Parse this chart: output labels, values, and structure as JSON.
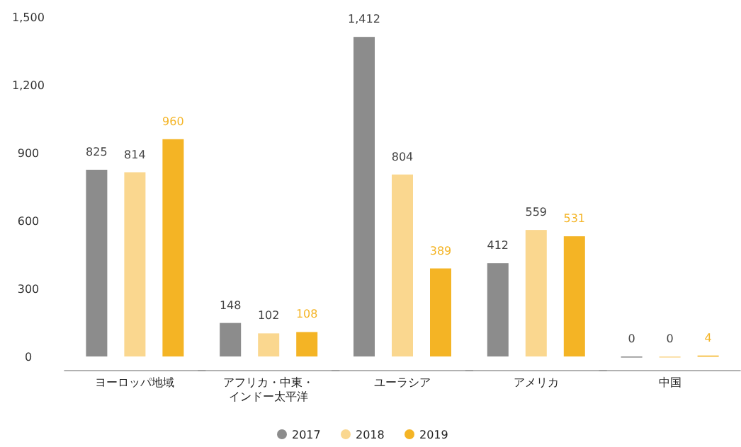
{
  "chart_data": {
    "type": "bar",
    "categories": [
      "ヨーロッパ地域",
      "アフリカ・中東・インドー太平洋",
      "ユーラシア",
      "アメリカ",
      "中国"
    ],
    "series": [
      {
        "name": "2017",
        "color": "#8c8c8c",
        "values": [
          825,
          148,
          1412,
          412,
          0
        ],
        "value_labels": [
          "825",
          "148",
          "1,412",
          "412",
          "0"
        ]
      },
      {
        "name": "2018",
        "color": "#fad78f",
        "values": [
          814,
          102,
          804,
          559,
          0
        ],
        "value_labels": [
          "814",
          "102",
          "804",
          "559",
          "0"
        ]
      },
      {
        "name": "2019",
        "color": "#f4b425",
        "values": [
          960,
          108,
          389,
          531,
          4
        ],
        "value_labels": [
          "960",
          "108",
          "389",
          "531",
          "4"
        ]
      }
    ],
    "ylim": [
      0,
      1500
    ],
    "yticks": [
      0,
      300,
      600,
      900,
      {
        "value": 1200,
        "label": "1,200"
      },
      {
        "value": 1500,
        "label": "1,500"
      }
    ],
    "grid": false,
    "legend": "bottom"
  }
}
